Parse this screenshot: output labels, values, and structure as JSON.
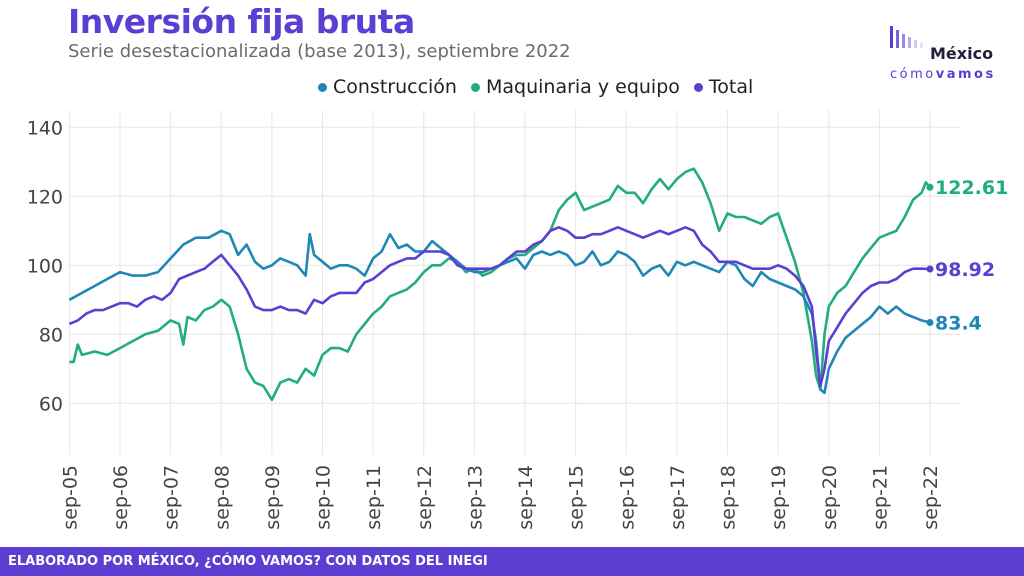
{
  "header": {
    "title": "Inversión fija bruta",
    "subtitle": "Serie desestacionalizada (base 2013), septiembre 2022"
  },
  "logo": {
    "word": "México",
    "sub_prefix": "cómo",
    "sub_bold": "vamos",
    "icon": "bars-logo-icon"
  },
  "legend": [
    {
      "label": "Construcción",
      "color": "#1f87b6"
    },
    {
      "label": "Maquinaria y equipo",
      "color": "#21ad7c"
    },
    {
      "label": "Total",
      "color": "#5a3fd2"
    }
  ],
  "footer": "ELABORADO POR MÉXICO, ¿CÓMO VAMOS? CON DATOS DEL INEGI",
  "chart_data": {
    "type": "line",
    "title": "Inversión fija bruta",
    "subtitle": "Serie desestacionalizada (base 2013), septiembre 2022",
    "xlabel": "",
    "ylabel": "",
    "ylim": [
      45,
      145
    ],
    "yticks": [
      60,
      80,
      100,
      120,
      140
    ],
    "xticks": [
      "sep-05",
      "sep-06",
      "sep-07",
      "sep-08",
      "sep-09",
      "sep-10",
      "sep-11",
      "sep-12",
      "sep-13",
      "sep-14",
      "sep-15",
      "sep-16",
      "sep-17",
      "sep-18",
      "sep-19",
      "sep-20",
      "sep-21",
      "sep-22"
    ],
    "x_start": "sep-05",
    "x_end": "sep-22",
    "frequency": "monthly",
    "grid": true,
    "legend_position": "top",
    "end_labels": [
      {
        "series": "Maquinaria y equipo",
        "text": "122.61",
        "value": 122.61
      },
      {
        "series": "Total",
        "text": "98.92",
        "value": 98.92
      },
      {
        "series": "Construcción",
        "text": "83.4",
        "value": 83.4
      }
    ],
    "series": [
      {
        "name": "Construcción",
        "color": "#1f87b6",
        "values": [
          [
            0,
            90
          ],
          [
            3,
            92
          ],
          [
            6,
            94
          ],
          [
            9,
            96
          ],
          [
            12,
            98
          ],
          [
            15,
            97
          ],
          [
            18,
            97
          ],
          [
            21,
            98
          ],
          [
            24,
            102
          ],
          [
            27,
            106
          ],
          [
            30,
            108
          ],
          [
            33,
            108
          ],
          [
            36,
            110
          ],
          [
            38,
            109
          ],
          [
            40,
            103
          ],
          [
            42,
            106
          ],
          [
            44,
            101
          ],
          [
            46,
            99
          ],
          [
            48,
            100
          ],
          [
            50,
            102
          ],
          [
            52,
            101
          ],
          [
            54,
            100
          ],
          [
            56,
            97
          ],
          [
            57,
            109
          ],
          [
            58,
            103
          ],
          [
            60,
            101
          ],
          [
            62,
            99
          ],
          [
            64,
            100
          ],
          [
            66,
            100
          ],
          [
            68,
            99
          ],
          [
            70,
            97
          ],
          [
            72,
            102
          ],
          [
            74,
            104
          ],
          [
            76,
            109
          ],
          [
            78,
            105
          ],
          [
            80,
            106
          ],
          [
            82,
            104
          ],
          [
            84,
            104
          ],
          [
            86,
            107
          ],
          [
            88,
            105
          ],
          [
            90,
            103
          ],
          [
            92,
            101
          ],
          [
            94,
            99
          ],
          [
            96,
            98
          ],
          [
            98,
            98
          ],
          [
            100,
            99
          ],
          [
            102,
            100
          ],
          [
            104,
            101
          ],
          [
            106,
            102
          ],
          [
            108,
            99
          ],
          [
            110,
            103
          ],
          [
            112,
            104
          ],
          [
            114,
            103
          ],
          [
            116,
            104
          ],
          [
            118,
            103
          ],
          [
            120,
            100
          ],
          [
            122,
            101
          ],
          [
            124,
            104
          ],
          [
            126,
            100
          ],
          [
            128,
            101
          ],
          [
            130,
            104
          ],
          [
            132,
            103
          ],
          [
            134,
            101
          ],
          [
            136,
            97
          ],
          [
            138,
            99
          ],
          [
            140,
            100
          ],
          [
            142,
            97
          ],
          [
            144,
            101
          ],
          [
            146,
            100
          ],
          [
            148,
            101
          ],
          [
            150,
            100
          ],
          [
            152,
            99
          ],
          [
            154,
            98
          ],
          [
            156,
            101
          ],
          [
            158,
            100
          ],
          [
            160,
            96
          ],
          [
            162,
            94
          ],
          [
            164,
            98
          ],
          [
            166,
            96
          ],
          [
            168,
            95
          ],
          [
            170,
            94
          ],
          [
            172,
            93
          ],
          [
            174,
            91
          ],
          [
            176,
            86
          ],
          [
            177,
            78
          ],
          [
            178,
            64
          ],
          [
            179,
            63
          ],
          [
            180,
            70
          ],
          [
            182,
            75
          ],
          [
            184,
            79
          ],
          [
            186,
            81
          ],
          [
            188,
            83
          ],
          [
            190,
            85
          ],
          [
            192,
            88
          ],
          [
            194,
            86
          ],
          [
            196,
            88
          ],
          [
            198,
            86
          ],
          [
            200,
            85
          ],
          [
            202,
            84
          ],
          [
            204,
            83.4
          ]
        ]
      },
      {
        "name": "Maquinaria y equipo",
        "color": "#21ad7c",
        "values": [
          [
            0,
            72
          ],
          [
            1,
            72
          ],
          [
            2,
            77
          ],
          [
            3,
            74
          ],
          [
            6,
            75
          ],
          [
            9,
            74
          ],
          [
            12,
            76
          ],
          [
            15,
            78
          ],
          [
            18,
            80
          ],
          [
            21,
            81
          ],
          [
            24,
            84
          ],
          [
            26,
            83
          ],
          [
            27,
            77
          ],
          [
            28,
            85
          ],
          [
            30,
            84
          ],
          [
            32,
            87
          ],
          [
            34,
            88
          ],
          [
            36,
            90
          ],
          [
            38,
            88
          ],
          [
            40,
            80
          ],
          [
            42,
            70
          ],
          [
            44,
            66
          ],
          [
            46,
            65
          ],
          [
            48,
            61
          ],
          [
            50,
            66
          ],
          [
            52,
            67
          ],
          [
            54,
            66
          ],
          [
            56,
            70
          ],
          [
            58,
            68
          ],
          [
            60,
            74
          ],
          [
            62,
            76
          ],
          [
            64,
            76
          ],
          [
            66,
            75
          ],
          [
            68,
            80
          ],
          [
            70,
            83
          ],
          [
            72,
            86
          ],
          [
            74,
            88
          ],
          [
            76,
            91
          ],
          [
            78,
            92
          ],
          [
            80,
            93
          ],
          [
            82,
            95
          ],
          [
            84,
            98
          ],
          [
            86,
            100
          ],
          [
            88,
            100
          ],
          [
            90,
            102
          ],
          [
            92,
            101
          ],
          [
            94,
            98
          ],
          [
            96,
            99
          ],
          [
            98,
            97
          ],
          [
            100,
            98
          ],
          [
            102,
            100
          ],
          [
            104,
            102
          ],
          [
            106,
            103
          ],
          [
            108,
            103
          ],
          [
            110,
            105
          ],
          [
            112,
            107
          ],
          [
            114,
            110
          ],
          [
            116,
            116
          ],
          [
            118,
            119
          ],
          [
            120,
            121
          ],
          [
            122,
            116
          ],
          [
            124,
            117
          ],
          [
            126,
            118
          ],
          [
            128,
            119
          ],
          [
            130,
            123
          ],
          [
            132,
            121
          ],
          [
            134,
            121
          ],
          [
            136,
            118
          ],
          [
            138,
            122
          ],
          [
            140,
            125
          ],
          [
            142,
            122
          ],
          [
            144,
            125
          ],
          [
            146,
            127
          ],
          [
            148,
            128
          ],
          [
            150,
            124
          ],
          [
            152,
            118
          ],
          [
            154,
            110
          ],
          [
            156,
            115
          ],
          [
            158,
            114
          ],
          [
            160,
            114
          ],
          [
            162,
            113
          ],
          [
            164,
            112
          ],
          [
            166,
            114
          ],
          [
            168,
            115
          ],
          [
            170,
            108
          ],
          [
            172,
            101
          ],
          [
            174,
            92
          ],
          [
            176,
            78
          ],
          [
            177,
            68
          ],
          [
            178,
            64
          ],
          [
            179,
            80
          ],
          [
            180,
            88
          ],
          [
            182,
            92
          ],
          [
            184,
            94
          ],
          [
            186,
            98
          ],
          [
            188,
            102
          ],
          [
            190,
            105
          ],
          [
            192,
            108
          ],
          [
            194,
            109
          ],
          [
            196,
            110
          ],
          [
            198,
            114
          ],
          [
            200,
            119
          ],
          [
            202,
            121
          ],
          [
            203,
            124
          ],
          [
            204,
            122.61
          ]
        ]
      },
      {
        "name": "Total",
        "color": "#5a3fd2",
        "values": [
          [
            0,
            83
          ],
          [
            2,
            84
          ],
          [
            4,
            86
          ],
          [
            6,
            87
          ],
          [
            8,
            87
          ],
          [
            10,
            88
          ],
          [
            12,
            89
          ],
          [
            14,
            89
          ],
          [
            16,
            88
          ],
          [
            18,
            90
          ],
          [
            20,
            91
          ],
          [
            22,
            90
          ],
          [
            24,
            92
          ],
          [
            26,
            96
          ],
          [
            28,
            97
          ],
          [
            30,
            98
          ],
          [
            32,
            99
          ],
          [
            34,
            101
          ],
          [
            36,
            103
          ],
          [
            38,
            100
          ],
          [
            40,
            97
          ],
          [
            42,
            93
          ],
          [
            44,
            88
          ],
          [
            46,
            87
          ],
          [
            48,
            87
          ],
          [
            50,
            88
          ],
          [
            52,
            87
          ],
          [
            54,
            87
          ],
          [
            56,
            86
          ],
          [
            58,
            90
          ],
          [
            60,
            89
          ],
          [
            62,
            91
          ],
          [
            64,
            92
          ],
          [
            66,
            92
          ],
          [
            68,
            92
          ],
          [
            70,
            95
          ],
          [
            72,
            96
          ],
          [
            74,
            98
          ],
          [
            76,
            100
          ],
          [
            78,
            101
          ],
          [
            80,
            102
          ],
          [
            82,
            102
          ],
          [
            84,
            104
          ],
          [
            86,
            104
          ],
          [
            88,
            104
          ],
          [
            90,
            103
          ],
          [
            92,
            100
          ],
          [
            94,
            99
          ],
          [
            96,
            99
          ],
          [
            98,
            99
          ],
          [
            100,
            99
          ],
          [
            102,
            100
          ],
          [
            104,
            102
          ],
          [
            106,
            104
          ],
          [
            108,
            104
          ],
          [
            110,
            106
          ],
          [
            112,
            107
          ],
          [
            114,
            110
          ],
          [
            116,
            111
          ],
          [
            118,
            110
          ],
          [
            120,
            108
          ],
          [
            122,
            108
          ],
          [
            124,
            109
          ],
          [
            126,
            109
          ],
          [
            128,
            110
          ],
          [
            130,
            111
          ],
          [
            132,
            110
          ],
          [
            134,
            109
          ],
          [
            136,
            108
          ],
          [
            138,
            109
          ],
          [
            140,
            110
          ],
          [
            142,
            109
          ],
          [
            144,
            110
          ],
          [
            146,
            111
          ],
          [
            148,
            110
          ],
          [
            150,
            106
          ],
          [
            152,
            104
          ],
          [
            154,
            101
          ],
          [
            156,
            101
          ],
          [
            158,
            101
          ],
          [
            160,
            100
          ],
          [
            162,
            99
          ],
          [
            164,
            99
          ],
          [
            166,
            99
          ],
          [
            168,
            100
          ],
          [
            170,
            99
          ],
          [
            172,
            97
          ],
          [
            174,
            94
          ],
          [
            176,
            88
          ],
          [
            177,
            75
          ],
          [
            178,
            65
          ],
          [
            179,
            70
          ],
          [
            180,
            78
          ],
          [
            182,
            82
          ],
          [
            184,
            86
          ],
          [
            186,
            89
          ],
          [
            188,
            92
          ],
          [
            190,
            94
          ],
          [
            192,
            95
          ],
          [
            194,
            95
          ],
          [
            196,
            96
          ],
          [
            198,
            98
          ],
          [
            200,
            99
          ],
          [
            202,
            99
          ],
          [
            204,
            98.92
          ]
        ]
      }
    ]
  }
}
